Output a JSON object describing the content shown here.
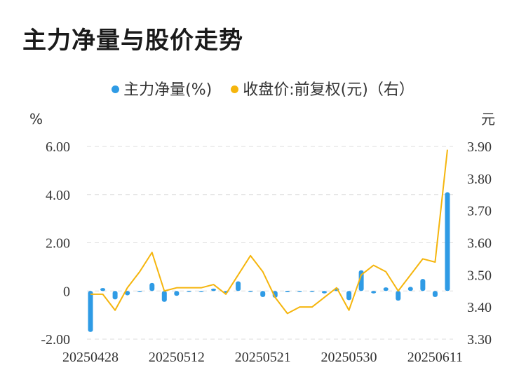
{
  "title": "主力净量与股价走势",
  "colors": {
    "bar": "#2f9be5",
    "line": "#f5b50d",
    "grid": "#dddddd",
    "text": "#333333"
  },
  "chart_data": {
    "type": "bar+line",
    "title": "主力净量与股价走势",
    "legend_position": "top",
    "grid": true,
    "left_axis": {
      "unit": "%",
      "ticks": [
        "6.00",
        "4.00",
        "2.00",
        "0",
        "-2.00"
      ],
      "range": [
        -2,
        6
      ]
    },
    "right_axis": {
      "unit": "元",
      "ticks": [
        "3.90",
        "3.80",
        "3.70",
        "3.60",
        "3.50",
        "3.40",
        "3.30"
      ],
      "range": [
        3.3,
        3.9
      ]
    },
    "x_tick_labels": [
      "20250428",
      "20250512",
      "20250521",
      "20250530",
      "20250611"
    ],
    "x_tick_index": [
      0,
      7,
      14,
      21,
      28
    ],
    "series": [
      {
        "name": "主力净量(%)",
        "type": "bar",
        "axis": "left",
        "values": [
          -1.7,
          0.12,
          -0.35,
          -0.18,
          -0.04,
          0.33,
          -0.45,
          -0.2,
          -0.02,
          -0.03,
          0.1,
          -0.08,
          0.4,
          -0.04,
          -0.25,
          -0.28,
          -0.05,
          -0.03,
          -0.03,
          -0.1,
          0.12,
          -0.38,
          0.86,
          -0.1,
          0.15,
          -0.4,
          0.17,
          0.5,
          -0.25,
          4.1
        ]
      },
      {
        "name": "收盘价:前复权(元)（右）",
        "type": "line",
        "axis": "right",
        "values": [
          3.44,
          3.44,
          3.39,
          3.46,
          3.51,
          3.57,
          3.45,
          3.46,
          3.46,
          3.46,
          3.47,
          3.44,
          3.5,
          3.56,
          3.51,
          3.43,
          3.38,
          3.4,
          3.4,
          3.43,
          3.46,
          3.39,
          3.5,
          3.53,
          3.51,
          3.45,
          3.5,
          3.55,
          3.54,
          3.89
        ]
      }
    ]
  }
}
